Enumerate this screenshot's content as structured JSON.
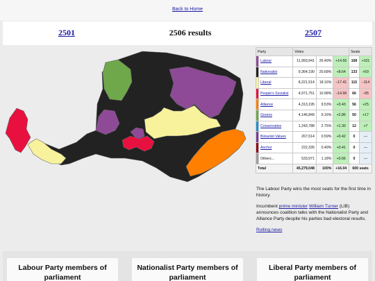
{
  "nav": {
    "back": "Back to Home",
    "prev": "2501",
    "title": "2506 results",
    "next": "2507"
  },
  "colors": {
    "labour": "#8e4a96",
    "nationalist": "#222222",
    "liberal": "#f8f29c",
    "peoples_socialist": "#e8103f",
    "alliance": "#ff7f00",
    "greens": "#6ea84a",
    "conservative": "#1f8fd6",
    "bokanist": "#7a3a9a",
    "anchor": "#8b0010",
    "others": "#9e9e9e"
  },
  "table": {
    "headers": {
      "party": "Party",
      "votes": "Votes",
      "seats": "Seats"
    },
    "rows": [
      {
        "party": "Labour",
        "color": "#8e4a96",
        "votes": "11,993,941",
        "pct": "26.49%",
        "change": "+14.66",
        "seats": "168",
        "seat_change": "+101",
        "chg_type": "pos",
        "seat_type": "pos",
        "link": true
      },
      {
        "party": "Nationalist",
        "color": "#222222",
        "votes": "9,364,190",
        "pct": "20.68%",
        "change": "+8.64",
        "seats": "133",
        "seat_change": "+59",
        "chg_type": "pos",
        "seat_type": "pos",
        "link": true
      },
      {
        "party": "Liberal",
        "color": "#f8f29c",
        "votes": "8,221,514",
        "pct": "18.16%",
        "change": "−17.41",
        "seats": "115",
        "seat_change": "−114",
        "chg_type": "neg",
        "seat_type": "neg",
        "link": true
      },
      {
        "party": "People's Socialist",
        "color": "#e8103f",
        "votes": "4,971,751",
        "pct": "10.98%",
        "change": "−14.96",
        "seats": "66",
        "seat_change": "−95",
        "chg_type": "neg",
        "seat_type": "neg",
        "link": true
      },
      {
        "party": "Alliance",
        "color": "#ff7f00",
        "votes": "4,313,195",
        "pct": "9.53%",
        "change": "+3.43",
        "seats": "56",
        "seat_change": "+25",
        "chg_type": "pos",
        "seat_type": "pos",
        "link": true
      },
      {
        "party": "Greens",
        "color": "#6ea84a",
        "votes": "4,146,849",
        "pct": "9.16%",
        "change": "+2.86",
        "seats": "50",
        "seat_change": "+17",
        "chg_type": "pos",
        "seat_type": "pos",
        "link": true
      },
      {
        "party": "Conservative",
        "color": "#1f8fd6",
        "votes": "1,243,788",
        "pct": "2.75%",
        "change": "+1.30",
        "seats": "12",
        "seat_change": "+7",
        "chg_type": "pos",
        "seat_type": "pos",
        "link": true
      },
      {
        "party": "Bokanist Values",
        "color": "#7a3a9a",
        "votes": "267,514",
        "pct": "0.59%",
        "change": "+0.42",
        "seats": "0",
        "seat_change": "—",
        "chg_type": "pos",
        "seat_type": "zero",
        "link": true
      },
      {
        "party": "Anchor",
        "color": "#8b0010",
        "votes": "222,335",
        "pct": "0.49%",
        "change": "+0.41",
        "seats": "0",
        "seat_change": "—",
        "chg_type": "pos",
        "seat_type": "zero",
        "link": true
      },
      {
        "party": "Others...",
        "color": "#9e9e9e",
        "votes": "533,971",
        "pct": "1.18%",
        "change": "+0.66",
        "seats": "0",
        "seat_change": "—",
        "chg_type": "pos",
        "seat_type": "zero",
        "link": false
      }
    ],
    "total": {
      "label": "Total",
      "votes": "45,279,048",
      "pct": "100%",
      "change": "+16.04",
      "seats": "600 seats"
    }
  },
  "news": {
    "p1": "The Labour Party wins the most seats for the first time in history.",
    "p2_a": "Incumbent ",
    "p2_link1": "prime minister",
    "p2_b": " ",
    "p2_link2": "William Turner",
    "p2_c": " (LIB) announces coalition talks with the Nationalist Party and Alliance Party despite his parties bad electoral results.",
    "rolling": "Rolling news"
  },
  "members": [
    "Labour Party members of parliament",
    "Nationalist Party members of parliament",
    "Liberal Party members of parliament"
  ]
}
